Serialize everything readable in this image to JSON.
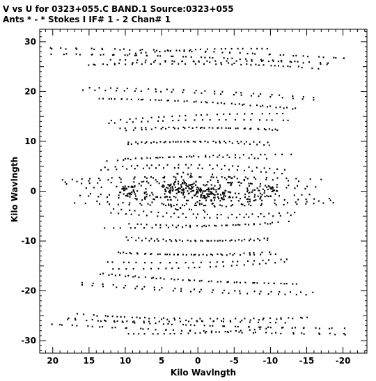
{
  "chart_data": {
    "type": "scatter",
    "title": "V vs U for 0323+055.C BAND.1   Source:0323+055",
    "subtitle": "Ants * - *     Stokes I   IF# 1 - 2   Chan# 1",
    "xlabel": "Kilo Wavlngth",
    "ylabel": "Kilo Wavlngth",
    "xlim": [
      21.8,
      -23.3
    ],
    "ylim": [
      -32.5,
      32.5
    ],
    "x_inverted": true,
    "grid": false,
    "marker_color": "#000000",
    "xticks": [
      20,
      15,
      10,
      5,
      0,
      -5,
      -10,
      -15,
      -20
    ],
    "xtick_labels": [
      "20",
      "15",
      "10",
      "5",
      "0",
      "-5",
      "-10",
      "-15",
      "-20"
    ],
    "yticks": [
      30,
      20,
      10,
      0,
      -10,
      -20,
      -30
    ],
    "ytick_labels": [
      "30",
      "20",
      "10",
      "0",
      "-10",
      "-20",
      "-30"
    ],
    "series": [
      {
        "tracks": [
          {
            "x0": 21,
            "y0": 28.8,
            "x1": -21.5,
            "y1": 26.6
          },
          {
            "x0": 20.5,
            "y0": 27.5,
            "x1": -19.5,
            "y1": 25.6
          },
          {
            "x0": 15.5,
            "y0": 25.3,
            "x1": -14.5,
            "y1": 25.0
          },
          {
            "x0": 12.5,
            "y0": 26.4,
            "x1": -17.5,
            "y1": 24.5
          },
          {
            "x0": 16,
            "y0": 20.3,
            "x1": -16.5,
            "y1": 18.3
          },
          {
            "x0": 14,
            "y0": 18.6,
            "x1": -14,
            "y1": 16.4
          },
          {
            "x0": 12,
            "y0": 14.2,
            "x1": -12.5,
            "y1": 15.6
          },
          {
            "x0": 10,
            "y0": 12.2,
            "x1": -11.5,
            "y1": 12.4
          },
          {
            "x0": 10,
            "y0": 9.4,
            "x1": -10,
            "y1": 9.8
          },
          {
            "x0": 10.5,
            "y0": 6.5,
            "x1": -10,
            "y1": 6.5
          },
          {
            "x0": 13,
            "y0": 4.8,
            "x1": -13,
            "y1": 4.2
          },
          {
            "x0": 18.5,
            "y0": 1.8,
            "x1": -18,
            "y1": 2.3
          },
          {
            "x0": 16,
            "y0": 0.6,
            "x1": -16,
            "y1": 0.4
          },
          {
            "x0": 17,
            "y0": -0.8,
            "x1": -19,
            "y1": -1.4
          },
          {
            "x0": 14,
            "y0": -2.0,
            "x1": -20,
            "y1": -2.2
          },
          {
            "x0": 12,
            "y0": -3.5,
            "x1": -14,
            "y1": -4.2
          },
          {
            "x0": 13,
            "y0": -7.4,
            "x1": -13,
            "y1": -6.0
          },
          {
            "x0": 10,
            "y0": -9.2,
            "x1": -10,
            "y1": -9.8
          },
          {
            "x0": 11.5,
            "y0": -12.2,
            "x1": -11.5,
            "y1": -12.6
          },
          {
            "x0": 13,
            "y0": -14.2,
            "x1": -13,
            "y1": -13.6
          },
          {
            "x0": 14,
            "y0": -16.6,
            "x1": -14,
            "y1": -18.6
          },
          {
            "x0": 16,
            "y0": -18.8,
            "x1": -16,
            "y1": -20.8
          },
          {
            "x0": 21,
            "y0": -26.6,
            "x1": -21,
            "y1": -28.6
          },
          {
            "x0": 18.5,
            "y0": -25.4,
            "x1": -19,
            "y1": -27.6
          },
          {
            "x0": 14,
            "y0": -26.0,
            "x1": -15,
            "y1": -25.4
          },
          {
            "x0": 10,
            "y0": -28.6,
            "x1": -10,
            "y1": -27.5
          }
        ],
        "points_per_track": 24
      }
    ],
    "core_cluster": [
      {
        "x": 2.2,
        "y": 0.6
      },
      {
        "x": -2.2,
        "y": -0.6
      }
    ]
  }
}
